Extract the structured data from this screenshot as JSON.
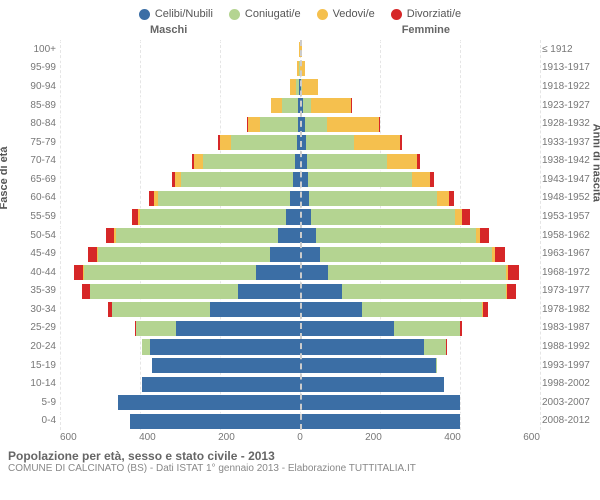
{
  "legend": [
    {
      "label": "Celibi/Nubili",
      "color": "#3b6ea5"
    },
    {
      "label": "Coniugati/e",
      "color": "#b4d491"
    },
    {
      "label": "Vedovi/e",
      "color": "#f5c04e"
    },
    {
      "label": "Divorziati/e",
      "color": "#d62728"
    }
  ],
  "headers": {
    "left": "Maschi",
    "right": "Femmine"
  },
  "axis_titles": {
    "left": "Fasce di età",
    "right": "Anni di nascita"
  },
  "max_value": 600,
  "x_ticks_left": [
    600,
    400,
    200,
    0
  ],
  "x_ticks_right": [
    200,
    400,
    600
  ],
  "colors": {
    "celibi": "#3b6ea5",
    "coniugati": "#b4d491",
    "vedovi": "#f5c04e",
    "divorziati": "#d62728",
    "grid": "#e5e5e5",
    "center": "#cccccc"
  },
  "rows": [
    {
      "age": "100+",
      "year": "≤ 1912",
      "m": {
        "c": 0,
        "co": 0,
        "v": 3,
        "d": 0
      },
      "f": {
        "c": 0,
        "co": 0,
        "v": 5,
        "d": 0
      }
    },
    {
      "age": "95-99",
      "year": "1913-1917",
      "m": {
        "c": 0,
        "co": 2,
        "v": 6,
        "d": 0
      },
      "f": {
        "c": 0,
        "co": 0,
        "v": 12,
        "d": 0
      }
    },
    {
      "age": "90-94",
      "year": "1918-1922",
      "m": {
        "c": 2,
        "co": 8,
        "v": 14,
        "d": 0
      },
      "f": {
        "c": 3,
        "co": 3,
        "v": 40,
        "d": 0
      }
    },
    {
      "age": "85-89",
      "year": "1923-1927",
      "m": {
        "c": 4,
        "co": 40,
        "v": 28,
        "d": 1
      },
      "f": {
        "c": 8,
        "co": 20,
        "v": 100,
        "d": 2
      }
    },
    {
      "age": "80-84",
      "year": "1928-1932",
      "m": {
        "c": 6,
        "co": 95,
        "v": 30,
        "d": 2
      },
      "f": {
        "c": 12,
        "co": 55,
        "v": 130,
        "d": 3
      }
    },
    {
      "age": "75-79",
      "year": "1933-1937",
      "m": {
        "c": 8,
        "co": 165,
        "v": 28,
        "d": 3
      },
      "f": {
        "c": 15,
        "co": 120,
        "v": 115,
        "d": 5
      }
    },
    {
      "age": "70-74",
      "year": "1938-1942",
      "m": {
        "c": 12,
        "co": 230,
        "v": 22,
        "d": 6
      },
      "f": {
        "c": 18,
        "co": 200,
        "v": 75,
        "d": 8
      }
    },
    {
      "age": "65-69",
      "year": "1943-1947",
      "m": {
        "c": 18,
        "co": 280,
        "v": 15,
        "d": 8
      },
      "f": {
        "c": 20,
        "co": 260,
        "v": 45,
        "d": 10
      }
    },
    {
      "age": "60-64",
      "year": "1948-1952",
      "m": {
        "c": 25,
        "co": 330,
        "v": 10,
        "d": 12
      },
      "f": {
        "c": 22,
        "co": 320,
        "v": 30,
        "d": 14
      }
    },
    {
      "age": "55-59",
      "year": "1953-1957",
      "m": {
        "c": 35,
        "co": 365,
        "v": 6,
        "d": 15
      },
      "f": {
        "c": 28,
        "co": 360,
        "v": 18,
        "d": 18
      }
    },
    {
      "age": "50-54",
      "year": "1958-1962",
      "m": {
        "c": 55,
        "co": 405,
        "v": 4,
        "d": 20
      },
      "f": {
        "c": 40,
        "co": 400,
        "v": 10,
        "d": 22
      }
    },
    {
      "age": "45-49",
      "year": "1963-1967",
      "m": {
        "c": 75,
        "co": 430,
        "v": 3,
        "d": 22
      },
      "f": {
        "c": 50,
        "co": 430,
        "v": 8,
        "d": 25
      }
    },
    {
      "age": "40-44",
      "year": "1968-1972",
      "m": {
        "c": 110,
        "co": 430,
        "v": 2,
        "d": 23
      },
      "f": {
        "c": 70,
        "co": 445,
        "v": 5,
        "d": 28
      }
    },
    {
      "age": "35-39",
      "year": "1973-1977",
      "m": {
        "c": 155,
        "co": 370,
        "v": 1,
        "d": 18
      },
      "f": {
        "c": 105,
        "co": 410,
        "v": 3,
        "d": 22
      }
    },
    {
      "age": "30-34",
      "year": "1978-1982",
      "m": {
        "c": 225,
        "co": 245,
        "v": 0,
        "d": 10
      },
      "f": {
        "c": 155,
        "co": 300,
        "v": 2,
        "d": 13
      }
    },
    {
      "age": "25-29",
      "year": "1983-1987",
      "m": {
        "c": 310,
        "co": 100,
        "v": 0,
        "d": 3
      },
      "f": {
        "c": 235,
        "co": 165,
        "v": 0,
        "d": 5
      }
    },
    {
      "age": "20-24",
      "year": "1988-1992",
      "m": {
        "c": 375,
        "co": 20,
        "v": 0,
        "d": 0
      },
      "f": {
        "c": 310,
        "co": 55,
        "v": 0,
        "d": 1
      }
    },
    {
      "age": "15-19",
      "year": "1993-1997",
      "m": {
        "c": 370,
        "co": 0,
        "v": 0,
        "d": 0
      },
      "f": {
        "c": 340,
        "co": 3,
        "v": 0,
        "d": 0
      }
    },
    {
      "age": "10-14",
      "year": "1998-2002",
      "m": {
        "c": 395,
        "co": 0,
        "v": 0,
        "d": 0
      },
      "f": {
        "c": 360,
        "co": 0,
        "v": 0,
        "d": 0
      }
    },
    {
      "age": "5-9",
      "year": "2003-2007",
      "m": {
        "c": 455,
        "co": 0,
        "v": 0,
        "d": 0
      },
      "f": {
        "c": 400,
        "co": 0,
        "v": 0,
        "d": 0
      }
    },
    {
      "age": "0-4",
      "year": "2008-2012",
      "m": {
        "c": 425,
        "co": 0,
        "v": 0,
        "d": 0
      },
      "f": {
        "c": 400,
        "co": 0,
        "v": 0,
        "d": 0
      }
    }
  ],
  "footer": {
    "title": "Popolazione per età, sesso e stato civile - 2013",
    "subtitle": "COMUNE DI CALCINATO (BS) - Dati ISTAT 1° gennaio 2013 - Elaborazione TUTTITALIA.IT"
  }
}
